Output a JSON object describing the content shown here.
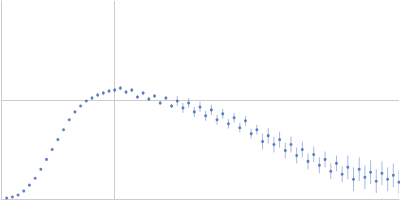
{
  "chart_data": {
    "type": "scatter",
    "color": "#3b67b7",
    "marker": "circle",
    "grid": true,
    "tick_labels": false,
    "xlim": [
      0,
      0.35
    ],
    "xticks": [
      0.1
    ],
    "ylim": [
      0,
      2
    ],
    "yticks": [
      1
    ],
    "x": [
      0.005,
      0.01,
      0.015,
      0.02,
      0.025,
      0.03,
      0.035,
      0.04,
      0.045,
      0.05,
      0.055,
      0.06,
      0.065,
      0.07,
      0.075,
      0.08,
      0.085,
      0.09,
      0.095,
      0.1,
      0.105,
      0.11,
      0.115,
      0.12,
      0.125,
      0.13,
      0.135,
      0.14,
      0.145,
      0.15,
      0.155,
      0.16,
      0.165,
      0.17,
      0.175,
      0.18,
      0.185,
      0.19,
      0.195,
      0.2,
      0.205,
      0.21,
      0.215,
      0.22,
      0.225,
      0.23,
      0.235,
      0.24,
      0.245,
      0.25,
      0.255,
      0.26,
      0.265,
      0.27,
      0.275,
      0.28,
      0.285,
      0.29,
      0.295,
      0.3,
      0.305,
      0.31,
      0.315,
      0.32,
      0.325,
      0.33,
      0.335,
      0.34,
      0.345,
      0.35
    ],
    "values": [
      0.01,
      0.02,
      0.04,
      0.08,
      0.14,
      0.21,
      0.3,
      0.4,
      0.5,
      0.6,
      0.7,
      0.8,
      0.88,
      0.94,
      0.99,
      1.02,
      1.05,
      1.07,
      1.09,
      1.1,
      1.12,
      1.08,
      1.1,
      1.03,
      1.07,
      1.01,
      1.04,
      0.97,
      1.02,
      0.94,
      0.99,
      0.92,
      0.97,
      0.88,
      0.93,
      0.84,
      0.9,
      0.8,
      0.86,
      0.76,
      0.82,
      0.72,
      0.79,
      0.66,
      0.7,
      0.58,
      0.64,
      0.55,
      0.6,
      0.49,
      0.55,
      0.44,
      0.5,
      0.38,
      0.45,
      0.34,
      0.4,
      0.28,
      0.36,
      0.25,
      0.32,
      0.2,
      0.3,
      0.22,
      0.27,
      0.18,
      0.26,
      0.2,
      0.24,
      0.17
    ],
    "errors": [
      0.005,
      0.005,
      0.005,
      0.005,
      0.005,
      0.005,
      0.005,
      0.005,
      0.005,
      0.005,
      0.005,
      0.005,
      0.005,
      0.005,
      0.005,
      0.02,
      0.02,
      0.02,
      0.02,
      0.02,
      0.02,
      0.02,
      0.02,
      0.02,
      0.02,
      0.02,
      0.02,
      0.02,
      0.02,
      0.02,
      0.05,
      0.05,
      0.05,
      0.05,
      0.05,
      0.05,
      0.05,
      0.05,
      0.05,
      0.05,
      0.05,
      0.05,
      0.05,
      0.05,
      0.05,
      0.08,
      0.08,
      0.08,
      0.08,
      0.08,
      0.08,
      0.08,
      0.08,
      0.08,
      0.08,
      0.08,
      0.08,
      0.08,
      0.08,
      0.08,
      0.12,
      0.12,
      0.12,
      0.12,
      0.12,
      0.12,
      0.12,
      0.12,
      0.12,
      0.12
    ]
  }
}
